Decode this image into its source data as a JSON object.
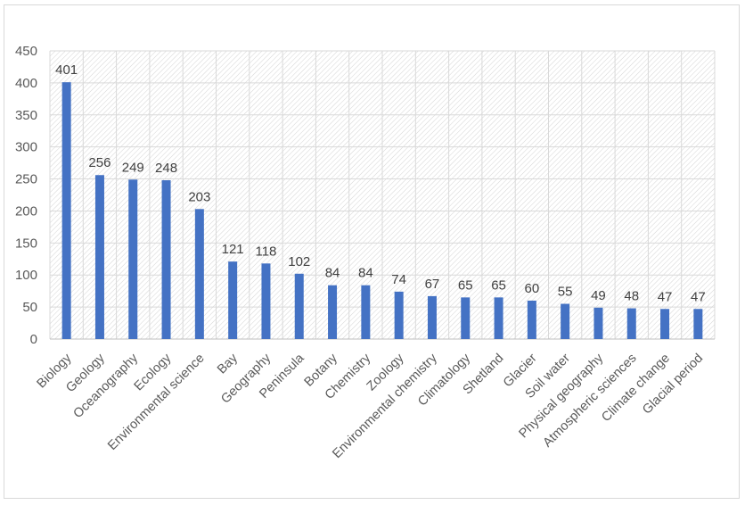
{
  "chart_data": {
    "type": "bar",
    "title": "",
    "xlabel": "",
    "ylabel": "",
    "ylim": [
      0,
      450
    ],
    "yticks": [
      0,
      50,
      100,
      150,
      200,
      250,
      300,
      350,
      400,
      450
    ],
    "grid": true,
    "legend": "none",
    "bar_color": "#4472c4",
    "categories": [
      "Biology",
      "Geology",
      "Oceanography",
      "Ecology",
      "Environmental science",
      "Bay",
      "Geography",
      "Peninsula",
      "Botany",
      "Chemistry",
      "Zoology",
      "Environmental chemistry",
      "Climatology",
      "Shetland",
      "Glacier",
      "Soil water",
      "Physical geography",
      "Atmospheric sciences",
      "Climate change",
      "Glacial period"
    ],
    "values": [
      401,
      256,
      249,
      248,
      203,
      121,
      118,
      102,
      84,
      84,
      74,
      67,
      65,
      65,
      60,
      55,
      49,
      48,
      47,
      47
    ]
  }
}
